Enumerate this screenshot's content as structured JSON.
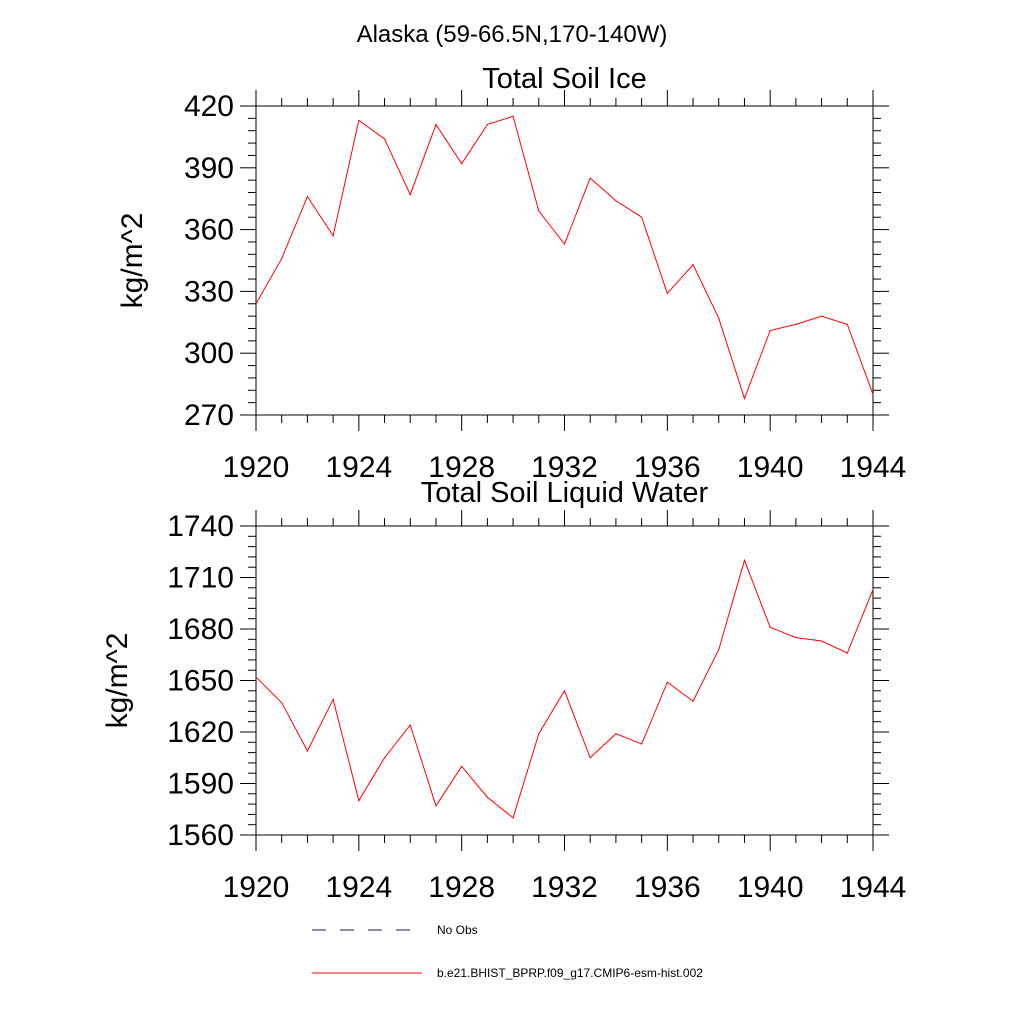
{
  "figure_title": "Alaska (59-66.5N,170-140W)",
  "legend": [
    {
      "label": "No Obs",
      "color": "#1a1a66",
      "dash": true
    },
    {
      "label": "b.e21.BHIST_BPRP.f09_g17.CMIP6-esm-hist.002",
      "color": "#ff0000",
      "dash": false
    }
  ],
  "chart_data": [
    {
      "type": "line",
      "title": "Total Soil Ice",
      "ylabel": "kg/m^2",
      "xlabel": "",
      "xlim": [
        1920,
        1944
      ],
      "ylim": [
        270,
        420
      ],
      "xticks": [
        1920,
        1924,
        1928,
        1932,
        1936,
        1940,
        1944
      ],
      "yticks": [
        270,
        300,
        330,
        360,
        390,
        420
      ],
      "xticklabels": [
        "1920",
        "1924",
        "1928",
        "1932",
        "1936",
        "1940",
        "1944"
      ],
      "yticklabels": [
        "270",
        "300",
        "330",
        "360",
        "390",
        "420"
      ],
      "grid": false,
      "series": [
        {
          "name": "b.e21.BHIST_BPRP.f09_g17.CMIP6-esm-hist.002",
          "color": "#ff0000",
          "x": [
            1920,
            1921,
            1922,
            1923,
            1924,
            1925,
            1926,
            1927,
            1928,
            1929,
            1930,
            1931,
            1932,
            1933,
            1934,
            1935,
            1936,
            1937,
            1938,
            1939,
            1940,
            1941,
            1942,
            1943,
            1944
          ],
          "y": [
            324,
            346,
            376,
            357,
            413,
            404,
            377,
            411,
            392,
            411,
            415,
            369,
            353,
            385,
            374,
            366,
            329,
            343,
            317,
            278,
            311,
            314,
            318,
            314,
            280
          ]
        }
      ]
    },
    {
      "type": "line",
      "title": "Total Soil Liquid Water",
      "ylabel": "kg/m^2",
      "xlabel": "",
      "xlim": [
        1920,
        1944
      ],
      "ylim": [
        1560,
        1740
      ],
      "xticks": [
        1920,
        1924,
        1928,
        1932,
        1936,
        1940,
        1944
      ],
      "yticks": [
        1560,
        1590,
        1620,
        1650,
        1680,
        1710,
        1740
      ],
      "xticklabels": [
        "1920",
        "1924",
        "1928",
        "1932",
        "1936",
        "1940",
        "1944"
      ],
      "yticklabels": [
        "1560",
        "1590",
        "1620",
        "1650",
        "1680",
        "1710",
        "1740"
      ],
      "grid": false,
      "series": [
        {
          "name": "b.e21.BHIST_BPRP.f09_g17.CMIP6-esm-hist.002",
          "color": "#ff0000",
          "x": [
            1920,
            1921,
            1922,
            1923,
            1924,
            1925,
            1926,
            1927,
            1928,
            1929,
            1930,
            1931,
            1932,
            1933,
            1934,
            1935,
            1936,
            1937,
            1938,
            1939,
            1940,
            1941,
            1942,
            1943,
            1944
          ],
          "y": [
            1652,
            1637,
            1609,
            1639,
            1580,
            1605,
            1624,
            1577,
            1600,
            1582,
            1570,
            1619,
            1644,
            1605,
            1619,
            1613,
            1649,
            1638,
            1668,
            1720,
            1681,
            1675,
            1673,
            1666,
            1703
          ]
        }
      ]
    }
  ]
}
